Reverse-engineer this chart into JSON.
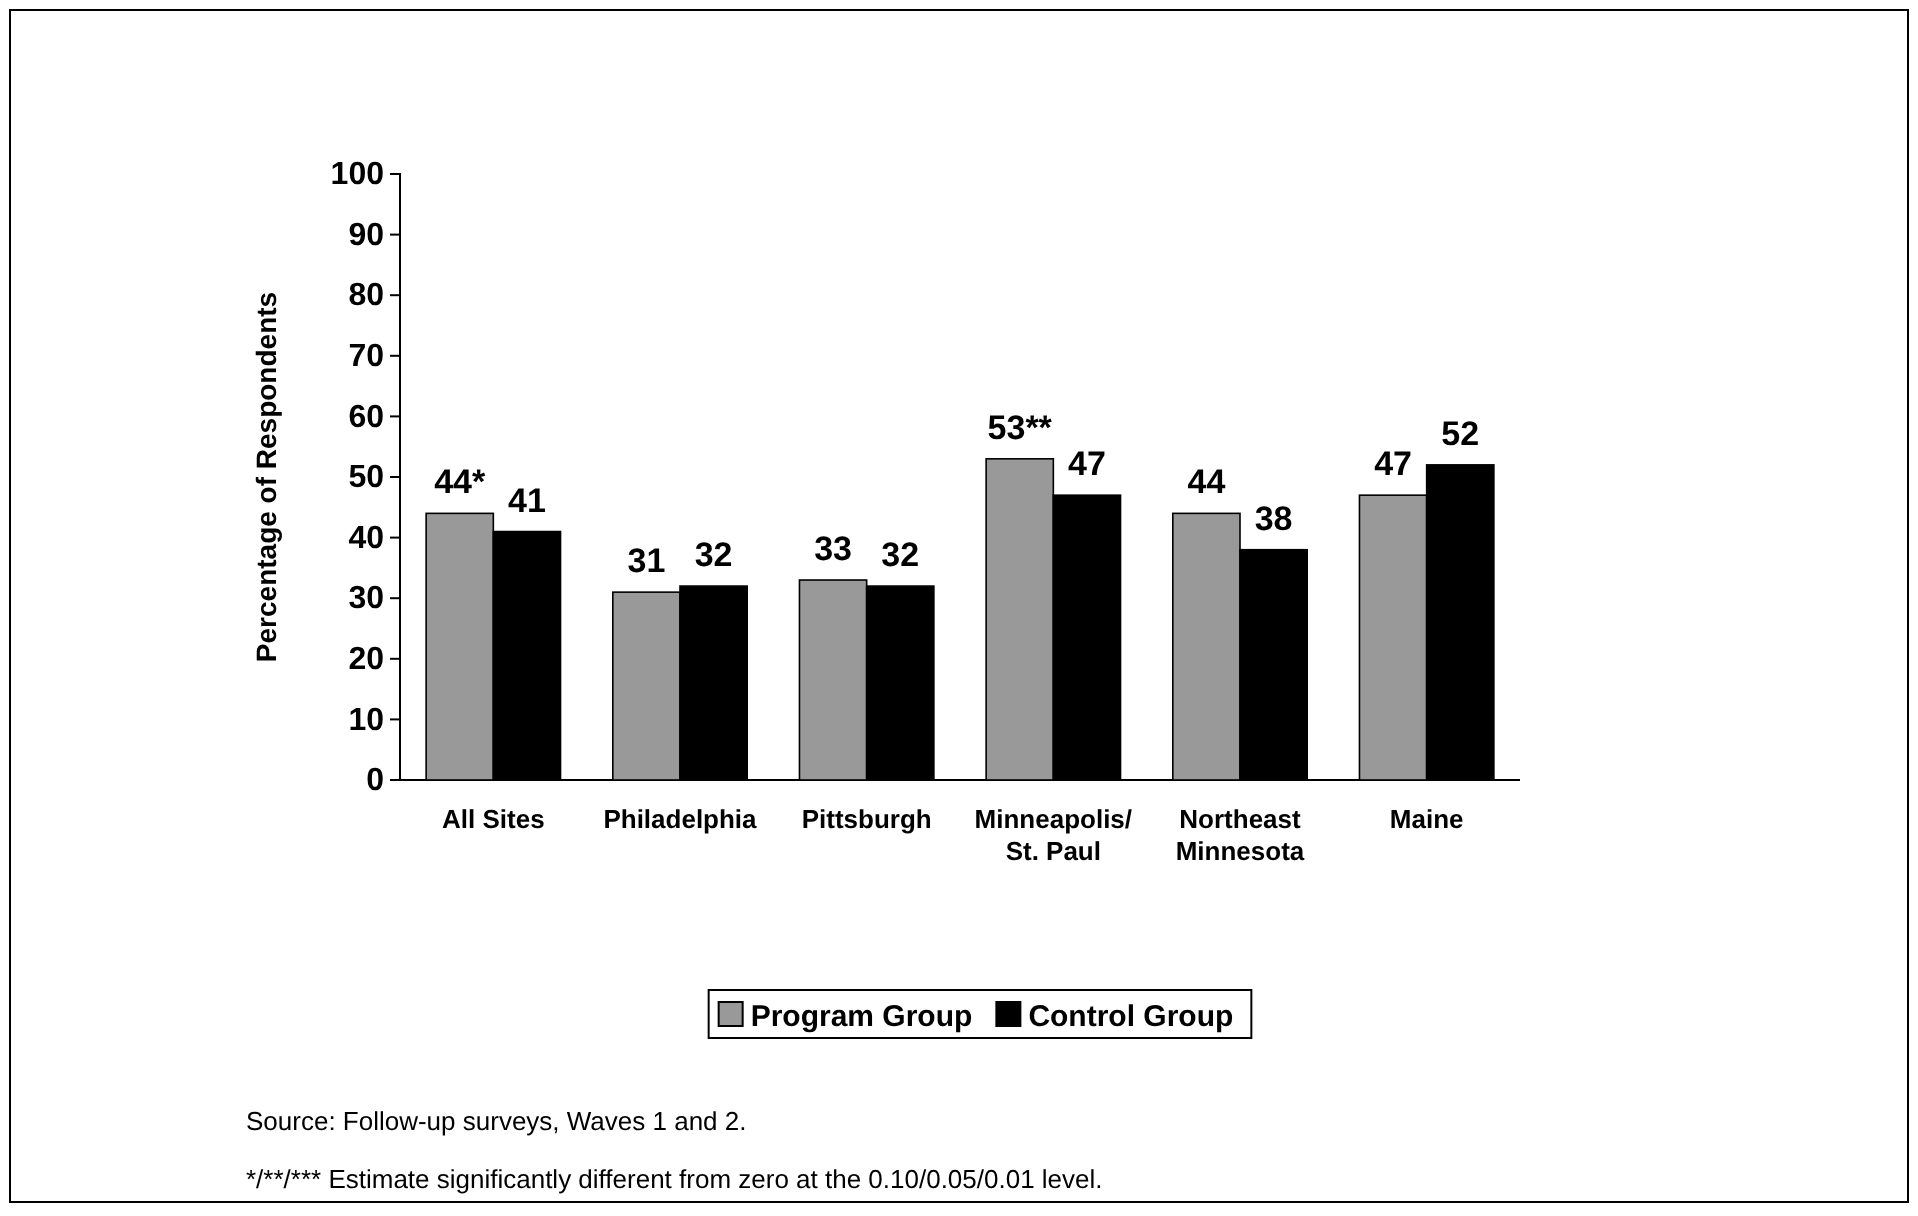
{
  "chart_data": {
    "type": "bar",
    "ylabel": "Percentage of Respondents",
    "categories": [
      "All Sites",
      "Philadelphia",
      "Pittsburgh",
      "Minneapolis/\nSt. Paul",
      "Northeast\nMinnesota",
      "Maine"
    ],
    "series": [
      {
        "name": "Program Group",
        "color": "#999999",
        "values": [
          44,
          31,
          33,
          53,
          44,
          47
        ],
        "value_labels": [
          "44*",
          "31",
          "33",
          "53**",
          "44",
          "47"
        ]
      },
      {
        "name": "Control Group",
        "color": "#000000",
        "values": [
          41,
          32,
          32,
          47,
          38,
          52
        ],
        "value_labels": [
          "41",
          "32",
          "32",
          "47",
          "38",
          "52"
        ]
      }
    ],
    "ylim": [
      0,
      100
    ],
    "yticks": [
      0,
      10,
      20,
      30,
      40,
      50,
      60,
      70,
      80,
      90,
      100
    ],
    "grid": false,
    "legend": "bottom",
    "annotations": [
      "Source:  Follow-up surveys, Waves 1 and 2.",
      "*/**/***  Estimate significantly different from zero at the 0.10/0.05/0.01 level."
    ]
  }
}
